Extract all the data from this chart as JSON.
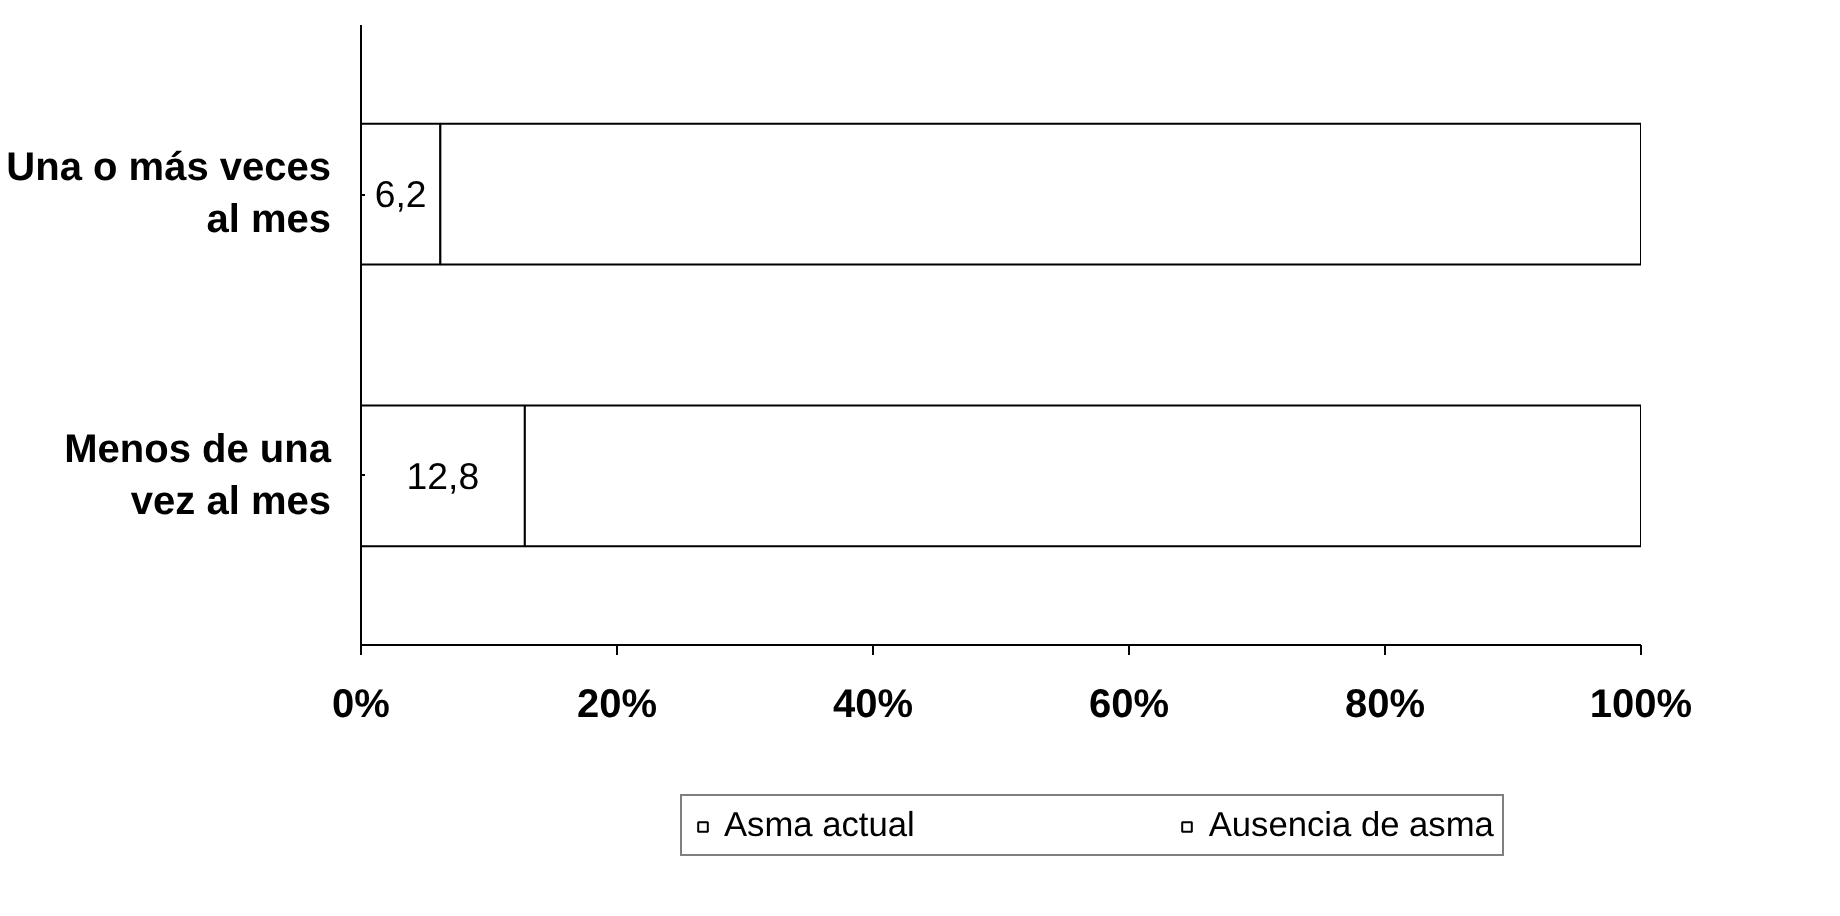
{
  "chart_data": {
    "type": "bar",
    "orientation": "horizontal",
    "stacked": true,
    "categories": [
      "Una o más veces al mes",
      "Menos de una vez al mes"
    ],
    "series": [
      {
        "name": "Asma actual",
        "color": "#ffffff",
        "values": [
          6.2,
          12.8
        ],
        "value_labels": [
          "6,2",
          "12,8"
        ]
      },
      {
        "name": "Ausencia de asma",
        "color": "#ffffff",
        "values": [
          93.8,
          87.2
        ]
      }
    ],
    "xlim": [
      0,
      100
    ],
    "xticks": [
      {
        "value": 0,
        "label": "0%"
      },
      {
        "value": 20,
        "label": "20%"
      },
      {
        "value": 40,
        "label": "40%"
      },
      {
        "value": 60,
        "label": "60%"
      },
      {
        "value": 80,
        "label": "80%"
      },
      {
        "value": 100,
        "label": "100%"
      }
    ],
    "grid": false,
    "legend": "bottom"
  }
}
